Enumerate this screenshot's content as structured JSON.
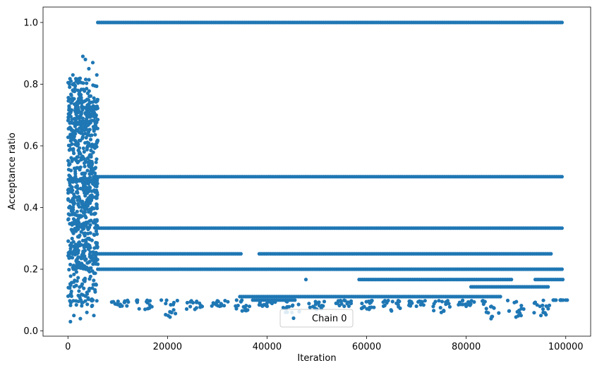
{
  "chart_data": {
    "type": "scatter",
    "xlabel": "Iteration",
    "ylabel": "Acceptance ratio",
    "xlim": [
      -5000,
      105000
    ],
    "ylim": [
      -0.017,
      1.05
    ],
    "xticks": [
      0,
      20000,
      40000,
      60000,
      80000,
      100000
    ],
    "xtick_labels": [
      "0",
      "20000",
      "40000",
      "60000",
      "80000",
      "100000"
    ],
    "yticks": [
      0.0,
      0.2,
      0.4,
      0.6,
      0.8,
      1.0
    ],
    "ytick_labels": [
      "0.0",
      "0.2",
      "0.4",
      "0.6",
      "0.8",
      "1.0"
    ],
    "grid": false,
    "legend_position": "lower-center",
    "series": [
      {
        "name": "Chain 0",
        "color": "#1f77b4",
        "marker": "circle",
        "burn_in": {
          "x_range": [
            0,
            6000
          ],
          "y_range": [
            0.03,
            0.89
          ],
          "sample_points": [
            [
              500,
              0.03
            ],
            [
              1200,
              0.05
            ],
            [
              2500,
              0.04
            ],
            [
              3800,
              0.06
            ],
            [
              5200,
              0.05
            ],
            [
              300,
              0.8
            ],
            [
              1000,
              0.83
            ],
            [
              2000,
              0.78
            ],
            [
              3000,
              0.89
            ],
            [
              3500,
              0.88
            ],
            [
              4200,
              0.85
            ],
            [
              5000,
              0.87
            ],
            [
              5800,
              0.83
            ],
            [
              1500,
              0.72
            ],
            [
              2800,
              0.65
            ],
            [
              4500,
              0.6
            ],
            [
              800,
              0.55
            ],
            [
              3300,
              0.5
            ],
            [
              5500,
              0.45
            ],
            [
              200,
              0.4
            ],
            [
              2200,
              0.35
            ],
            [
              4000,
              0.3
            ],
            [
              1800,
              0.25
            ],
            [
              3700,
              0.2
            ],
            [
              5300,
              0.15
            ],
            [
              600,
              0.12
            ],
            [
              2600,
              0.1
            ],
            [
              4800,
              0.08
            ]
          ]
        },
        "levels": [
          {
            "y": 1.0,
            "x_start": 6000,
            "x_end": 99500,
            "coverage": "continuous"
          },
          {
            "y": 0.5,
            "x_start": 6000,
            "x_end": 99500,
            "coverage": "continuous"
          },
          {
            "y": 0.3333,
            "x_start": 6000,
            "x_end": 99500,
            "coverage": "dense"
          },
          {
            "y": 0.25,
            "x_start": 6000,
            "x_end": 99500,
            "coverage": "frequent"
          },
          {
            "y": 0.2,
            "x_start": 6000,
            "x_end": 99500,
            "coverage": "frequent"
          },
          {
            "y": 0.1667,
            "x_start": 8000,
            "x_end": 99500,
            "coverage": "sparse"
          },
          {
            "y": 0.1429,
            "x_start": 8000,
            "x_end": 99500,
            "coverage": "sparse"
          },
          {
            "y": 0.125,
            "x_start": 8000,
            "x_end": 99500,
            "coverage": "sparse"
          },
          {
            "y": 0.1111,
            "x_start": 8000,
            "x_end": 99500,
            "coverage": "sparse"
          },
          {
            "y": 0.1,
            "x_start": 8000,
            "x_end": 99500,
            "coverage": "sparse"
          }
        ],
        "low_clusters": [
          {
            "x": 10500,
            "y_min": 0.08
          },
          {
            "x": 15500,
            "y_min": 0.07
          },
          {
            "x": 20500,
            "y_min": 0.045
          },
          {
            "x": 25500,
            "y_min": 0.07
          },
          {
            "x": 30500,
            "y_min": 0.08
          },
          {
            "x": 35000,
            "y_min": 0.065
          },
          {
            "x": 40000,
            "y_min": 0.08
          },
          {
            "x": 45000,
            "y_min": 0.06
          },
          {
            "x": 50000,
            "y_min": 0.07
          },
          {
            "x": 55500,
            "y_min": 0.08
          },
          {
            "x": 60500,
            "y_min": 0.07
          },
          {
            "x": 65000,
            "y_min": 0.065
          },
          {
            "x": 70000,
            "y_min": 0.08
          },
          {
            "x": 75000,
            "y_min": 0.06
          },
          {
            "x": 80000,
            "y_min": 0.08
          },
          {
            "x": 85000,
            "y_min": 0.04
          },
          {
            "x": 90000,
            "y_min": 0.045
          },
          {
            "x": 95000,
            "y_min": 0.05
          },
          {
            "x": 99000,
            "y_min": 0.1
          }
        ]
      }
    ]
  }
}
